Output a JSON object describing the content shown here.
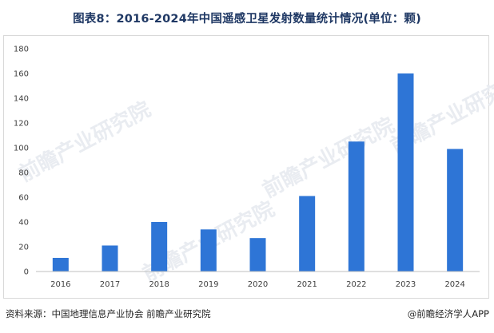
{
  "title": "图表8：2016-2024年中国遥感卫星发射数量统计情况(单位：颗)",
  "source": "资料来源：中国地理信息产业协会 前瞻产业研究院",
  "brand": "@前瞻经济学人APP",
  "watermark": "前瞻产业研究院",
  "colors": {
    "bar": "#2e75d6",
    "axis": "#bfbfbf",
    "title": "#1f3864"
  },
  "chart_data": {
    "type": "bar",
    "categories": [
      "2016",
      "2017",
      "2018",
      "2019",
      "2020",
      "2021",
      "2022",
      "2023",
      "2024"
    ],
    "values": [
      11,
      21,
      40,
      34,
      27,
      61,
      105,
      160,
      99
    ],
    "ylim": [
      0,
      180
    ],
    "yticks": [
      0,
      20,
      40,
      60,
      80,
      100,
      120,
      140,
      160,
      180
    ],
    "xlabel": "",
    "ylabel": "",
    "grid": false,
    "legend": "none"
  }
}
